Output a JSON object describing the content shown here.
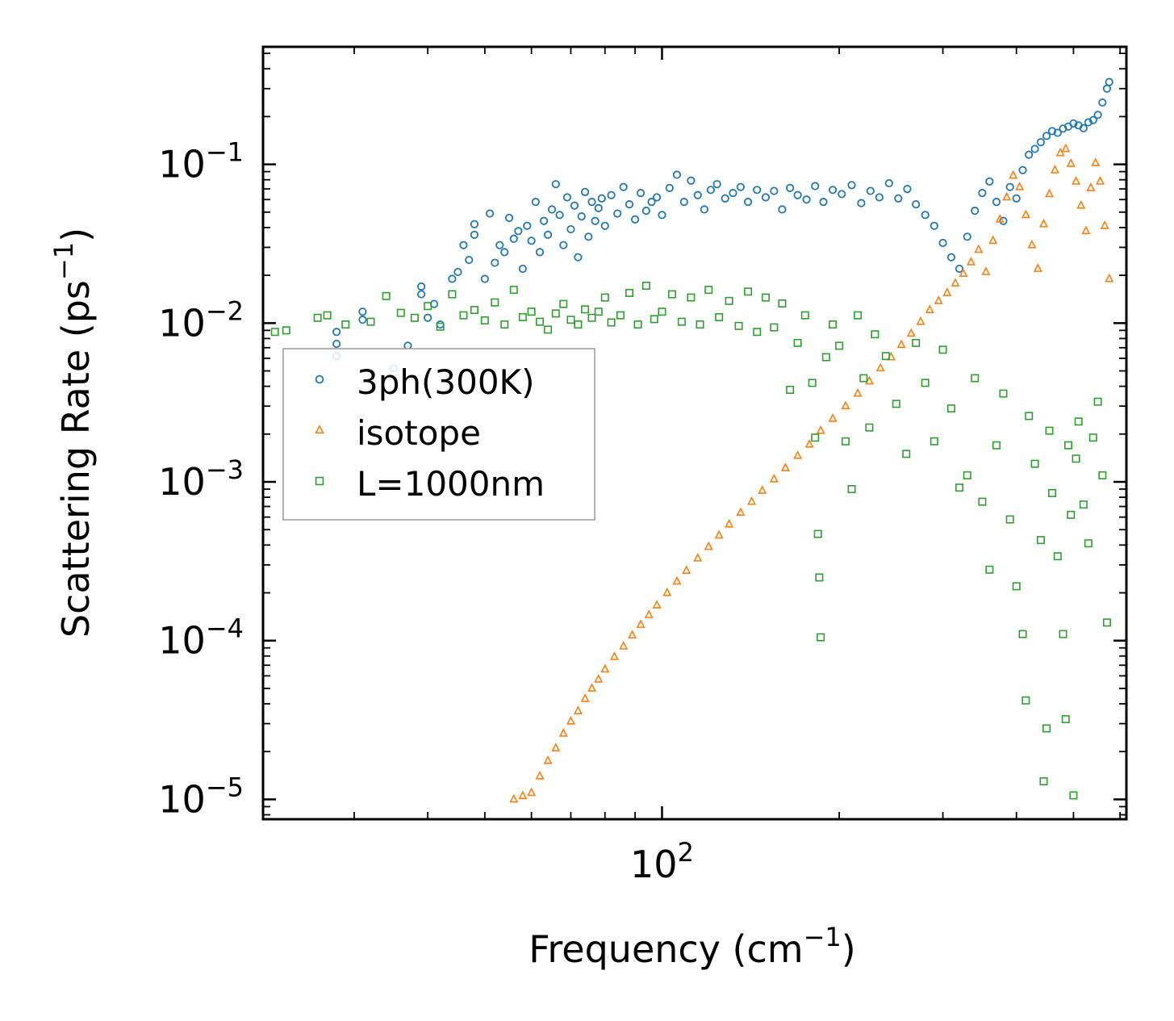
{
  "chart_data": {
    "type": "scatter",
    "title": "",
    "xlabel": "Frequency (cm",
    "xlabel_exp": "−1",
    "xlabel_end": ")",
    "ylabel": "Scattering Rate (ps",
    "ylabel_exp": "−1",
    "ylabel_end": ")",
    "xscale": "log",
    "yscale": "log",
    "xlim": [
      21,
      615
    ],
    "ylim": [
      7.5e-06,
      0.55
    ],
    "grid": false,
    "legend_position": "center-left",
    "x_ticks": [
      {
        "value": 100,
        "base": "10",
        "exp": "2"
      }
    ],
    "y_ticks": [
      {
        "value": 0.1,
        "base": "10",
        "exp": "−1"
      },
      {
        "value": 0.01,
        "base": "10",
        "exp": "−2"
      },
      {
        "value": 0.001,
        "base": "10",
        "exp": "−3"
      },
      {
        "value": 0.0001,
        "base": "10",
        "exp": "−4"
      },
      {
        "value": 1e-05,
        "base": "10",
        "exp": "−5"
      }
    ],
    "series": [
      {
        "name": "3ph(300K)",
        "marker": "circle",
        "color": "#1f77b4",
        "points": [
          [
            28,
            0.0062
          ],
          [
            28,
            0.0088
          ],
          [
            28,
            0.0074
          ],
          [
            31,
            0.0105
          ],
          [
            31,
            0.0118
          ],
          [
            35,
            0.0052
          ],
          [
            37,
            0.0072
          ],
          [
            39,
            0.017
          ],
          [
            39,
            0.0152
          ],
          [
            40,
            0.0108
          ],
          [
            41,
            0.0132
          ],
          [
            42,
            0.0098
          ],
          [
            44,
            0.019
          ],
          [
            45,
            0.021
          ],
          [
            46,
            0.031
          ],
          [
            47,
            0.025
          ],
          [
            48,
            0.036
          ],
          [
            48,
            0.042
          ],
          [
            50,
            0.019
          ],
          [
            51,
            0.049
          ],
          [
            52,
            0.024
          ],
          [
            53,
            0.031
          ],
          [
            54,
            0.028
          ],
          [
            55,
            0.046
          ],
          [
            56,
            0.034
          ],
          [
            57,
            0.038
          ],
          [
            58,
            0.022
          ],
          [
            59,
            0.041
          ],
          [
            60,
            0.033
          ],
          [
            61,
            0.058
          ],
          [
            62,
            0.028
          ],
          [
            63,
            0.044
          ],
          [
            64,
            0.036
          ],
          [
            65,
            0.052
          ],
          [
            66,
            0.075
          ],
          [
            67,
            0.048
          ],
          [
            68,
            0.031
          ],
          [
            69,
            0.062
          ],
          [
            70,
            0.039
          ],
          [
            71,
            0.055
          ],
          [
            72,
            0.026
          ],
          [
            73,
            0.047
          ],
          [
            74,
            0.067
          ],
          [
            75,
            0.035
          ],
          [
            76,
            0.058
          ],
          [
            77,
            0.044
          ],
          [
            78,
            0.053
          ],
          [
            79,
            0.061
          ],
          [
            80,
            0.041
          ],
          [
            82,
            0.064
          ],
          [
            84,
            0.049
          ],
          [
            86,
            0.072
          ],
          [
            88,
            0.056
          ],
          [
            90,
            0.045
          ],
          [
            92,
            0.066
          ],
          [
            94,
            0.051
          ],
          [
            96,
            0.058
          ],
          [
            98,
            0.062
          ],
          [
            100,
            0.048
          ],
          [
            103,
            0.071
          ],
          [
            106,
            0.086
          ],
          [
            109,
            0.058
          ],
          [
            112,
            0.079
          ],
          [
            115,
            0.064
          ],
          [
            118,
            0.052
          ],
          [
            121,
            0.069
          ],
          [
            124,
            0.075
          ],
          [
            128,
            0.061
          ],
          [
            132,
            0.066
          ],
          [
            136,
            0.072
          ],
          [
            140,
            0.058
          ],
          [
            145,
            0.069
          ],
          [
            150,
            0.062
          ],
          [
            155,
            0.068
          ],
          [
            160,
            0.052
          ],
          [
            165,
            0.071
          ],
          [
            170,
            0.064
          ],
          [
            176,
            0.06
          ],
          [
            182,
            0.073
          ],
          [
            188,
            0.058
          ],
          [
            195,
            0.069
          ],
          [
            202,
            0.065
          ],
          [
            210,
            0.074
          ],
          [
            218,
            0.057
          ],
          [
            226,
            0.068
          ],
          [
            234,
            0.062
          ],
          [
            243,
            0.076
          ],
          [
            252,
            0.061
          ],
          [
            261,
            0.07
          ],
          [
            270,
            0.056
          ],
          [
            280,
            0.048
          ],
          [
            290,
            0.041
          ],
          [
            300,
            0.032
          ],
          [
            310,
            0.026
          ],
          [
            320,
            0.022
          ],
          [
            330,
            0.035
          ],
          [
            340,
            0.051
          ],
          [
            350,
            0.066
          ],
          [
            360,
            0.078
          ],
          [
            370,
            0.058
          ],
          [
            380,
            0.044
          ],
          [
            390,
            0.072
          ],
          [
            400,
            0.061
          ],
          [
            410,
            0.092
          ],
          [
            420,
            0.115
          ],
          [
            430,
            0.125
          ],
          [
            440,
            0.138
          ],
          [
            450,
            0.151
          ],
          [
            460,
            0.162
          ],
          [
            470,
            0.158
          ],
          [
            480,
            0.168
          ],
          [
            490,
            0.173
          ],
          [
            500,
            0.181
          ],
          [
            510,
            0.176
          ],
          [
            520,
            0.169
          ],
          [
            530,
            0.184
          ],
          [
            540,
            0.19
          ],
          [
            550,
            0.205
          ],
          [
            560,
            0.245
          ],
          [
            570,
            0.3
          ],
          [
            575,
            0.33
          ]
        ]
      },
      {
        "name": "isotope",
        "marker": "triangle",
        "color": "#ff7f0e",
        "points": [
          [
            56,
            1e-05
          ],
          [
            58,
            1.05e-05
          ],
          [
            60,
            1.1e-05
          ],
          [
            62,
            1.4e-05
          ],
          [
            64,
            1.75e-05
          ],
          [
            66,
            2.1e-05
          ],
          [
            68,
            2.6e-05
          ],
          [
            70,
            3.1e-05
          ],
          [
            72,
            3.6e-05
          ],
          [
            74,
            4.3e-05
          ],
          [
            76,
            5e-05
          ],
          [
            78,
            5.7e-05
          ],
          [
            80,
            6.6e-05
          ],
          [
            83,
            7.9e-05
          ],
          [
            86,
            9.2e-05
          ],
          [
            89,
            0.000108
          ],
          [
            92,
            0.000126
          ],
          [
            95,
            0.000145
          ],
          [
            98,
            0.000167
          ],
          [
            102,
            0.0002
          ],
          [
            106,
            0.000236
          ],
          [
            110,
            0.000276
          ],
          [
            115,
            0.00033
          ],
          [
            120,
            0.00039
          ],
          [
            125,
            0.00046
          ],
          [
            130,
            0.00054
          ],
          [
            136,
            0.00064
          ],
          [
            142,
            0.00075
          ],
          [
            148,
            0.00088
          ],
          [
            155,
            0.00104
          ],
          [
            162,
            0.00122
          ],
          [
            170,
            0.00146
          ],
          [
            178,
            0.00172
          ],
          [
            186,
            0.0021
          ],
          [
            195,
            0.0025
          ],
          [
            205,
            0.003
          ],
          [
            215,
            0.0036
          ],
          [
            225,
            0.0043
          ],
          [
            235,
            0.0052
          ],
          [
            245,
            0.0061
          ],
          [
            255,
            0.0073
          ],
          [
            265,
            0.0086
          ],
          [
            275,
            0.0102
          ],
          [
            285,
            0.0121
          ],
          [
            295,
            0.0138
          ],
          [
            305,
            0.0155
          ],
          [
            315,
            0.0178
          ],
          [
            325,
            0.0205
          ],
          [
            335,
            0.0242
          ],
          [
            345,
            0.029
          ],
          [
            355,
            0.021
          ],
          [
            365,
            0.033
          ],
          [
            375,
            0.045
          ],
          [
            385,
            0.062
          ],
          [
            395,
            0.085
          ],
          [
            405,
            0.072
          ],
          [
            415,
            0.048
          ],
          [
            425,
            0.031
          ],
          [
            435,
            0.022
          ],
          [
            445,
            0.042
          ],
          [
            455,
            0.065
          ],
          [
            465,
            0.092
          ],
          [
            475,
            0.118
          ],
          [
            485,
            0.125
          ],
          [
            495,
            0.101
          ],
          [
            505,
            0.078
          ],
          [
            515,
            0.055
          ],
          [
            525,
            0.038
          ],
          [
            535,
            0.071
          ],
          [
            545,
            0.102
          ],
          [
            555,
            0.078
          ],
          [
            565,
            0.041
          ],
          [
            575,
            0.019
          ]
        ]
      },
      {
        "name": "L=1000nm",
        "marker": "square",
        "color": "#2ca02c",
        "points": [
          [
            22,
            0.0088
          ],
          [
            23,
            0.009
          ],
          [
            26,
            0.0108
          ],
          [
            27,
            0.0112
          ],
          [
            29,
            0.0098
          ],
          [
            32,
            0.0102
          ],
          [
            34,
            0.0148
          ],
          [
            36,
            0.0116
          ],
          [
            38,
            0.0108
          ],
          [
            40,
            0.0128
          ],
          [
            42,
            0.0095
          ],
          [
            44,
            0.0152
          ],
          [
            46,
            0.0112
          ],
          [
            48,
            0.0121
          ],
          [
            50,
            0.0104
          ],
          [
            52,
            0.0135
          ],
          [
            54,
            0.0098
          ],
          [
            56,
            0.0162
          ],
          [
            58,
            0.0109
          ],
          [
            60,
            0.0118
          ],
          [
            62,
            0.0102
          ],
          [
            64,
            0.0091
          ],
          [
            66,
            0.0115
          ],
          [
            68,
            0.0132
          ],
          [
            70,
            0.0105
          ],
          [
            72,
            0.0098
          ],
          [
            74,
            0.0122
          ],
          [
            76,
            0.0108
          ],
          [
            78,
            0.0118
          ],
          [
            80,
            0.0145
          ],
          [
            82,
            0.0101
          ],
          [
            85,
            0.0112
          ],
          [
            88,
            0.0155
          ],
          [
            91,
            0.0098
          ],
          [
            94,
            0.0172
          ],
          [
            97,
            0.0106
          ],
          [
            100,
            0.0118
          ],
          [
            104,
            0.0152
          ],
          [
            108,
            0.0102
          ],
          [
            112,
            0.0145
          ],
          [
            116,
            0.0098
          ],
          [
            120,
            0.0162
          ],
          [
            125,
            0.0109
          ],
          [
            130,
            0.0138
          ],
          [
            135,
            0.0096
          ],
          [
            140,
            0.0158
          ],
          [
            145,
            0.0088
          ],
          [
            150,
            0.0145
          ],
          [
            155,
            0.0094
          ],
          [
            160,
            0.0133
          ],
          [
            165,
            0.0038
          ],
          [
            170,
            0.0075
          ],
          [
            175,
            0.0112
          ],
          [
            180,
            0.0042
          ],
          [
            182,
            0.0019
          ],
          [
            184,
            0.00047
          ],
          [
            185,
            0.00025
          ],
          [
            186,
            0.000105
          ],
          [
            190,
            0.0061
          ],
          [
            195,
            0.0098
          ],
          [
            200,
            0.0072
          ],
          [
            205,
            0.0018
          ],
          [
            210,
            0.0009
          ],
          [
            215,
            0.0112
          ],
          [
            220,
            0.0045
          ],
          [
            225,
            0.0022
          ],
          [
            230,
            0.0085
          ],
          [
            240,
            0.0062
          ],
          [
            250,
            0.0031
          ],
          [
            260,
            0.0015
          ],
          [
            270,
            0.0075
          ],
          [
            280,
            0.0042
          ],
          [
            290,
            0.0018
          ],
          [
            300,
            0.0068
          ],
          [
            310,
            0.0029
          ],
          [
            320,
            0.00092
          ],
          [
            330,
            0.0011
          ],
          [
            340,
            0.0045
          ],
          [
            350,
            0.00075
          ],
          [
            360,
            0.00028
          ],
          [
            370,
            0.0017
          ],
          [
            380,
            0.0036
          ],
          [
            390,
            0.00058
          ],
          [
            400,
            0.00022
          ],
          [
            410,
            0.00011
          ],
          [
            415,
            4.2e-05
          ],
          [
            420,
            0.0026
          ],
          [
            430,
            0.0013
          ],
          [
            440,
            0.00043
          ],
          [
            445,
            1.3e-05
          ],
          [
            450,
            2.8e-05
          ],
          [
            455,
            0.0021
          ],
          [
            460,
            0.00085
          ],
          [
            470,
            0.00034
          ],
          [
            480,
            0.00011
          ],
          [
            485,
            3.2e-05
          ],
          [
            490,
            0.0017
          ],
          [
            495,
            0.00062
          ],
          [
            500,
            1.06e-05
          ],
          [
            505,
            0.0014
          ],
          [
            510,
            0.0024
          ],
          [
            520,
            0.00072
          ],
          [
            530,
            0.00041
          ],
          [
            540,
            0.0019
          ],
          [
            550,
            0.0032
          ],
          [
            560,
            0.0011
          ],
          [
            570,
            0.00013
          ]
        ]
      }
    ]
  }
}
